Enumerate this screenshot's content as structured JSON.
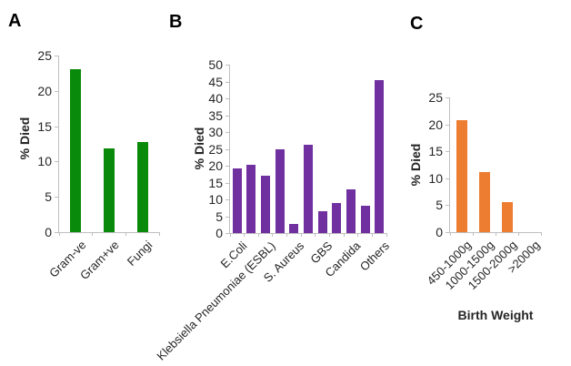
{
  "figure": {
    "background": "#ffffff",
    "axis_color": "#bfbfbf",
    "text_color": "#262626"
  },
  "chart_data": [
    {
      "type": "bar",
      "panel_label": "A",
      "title": "",
      "ylabel": "% Died",
      "xlabel": "",
      "ylim": [
        0,
        25
      ],
      "ytick_step": 5,
      "ytick_labels": [
        "0",
        "5",
        "10",
        "15",
        "20",
        "25"
      ],
      "grid": false,
      "legend": null,
      "bar_color": "#0a8a0a",
      "categories": [
        "Gram-ve",
        "Gram+ve",
        "Fungi"
      ],
      "values": [
        23.1,
        11.9,
        12.8
      ]
    },
    {
      "type": "bar",
      "panel_label": "B",
      "title": "",
      "ylabel": "% Died",
      "xlabel": "",
      "ylim": [
        0,
        50
      ],
      "ytick_step": 5,
      "ytick_labels": [
        "0",
        "5",
        "10",
        "15",
        "20",
        "25",
        "30",
        "35",
        "40",
        "45",
        "50"
      ],
      "grid": false,
      "legend": null,
      "bar_color": "#7030a0",
      "categories": [
        "E.Coli",
        "",
        "Klebsiella Pneumoniae (ESBL)",
        "",
        "S. Aureus",
        "",
        "GBS",
        "",
        "Candida",
        "",
        "Others"
      ],
      "values": [
        19.3,
        20.2,
        17,
        25,
        2.8,
        26.2,
        6.6,
        9,
        12.9,
        8,
        45.5
      ]
    },
    {
      "type": "bar",
      "panel_label": "C",
      "title": "",
      "ylabel": "% Died",
      "xlabel": "Birth Weight",
      "ylim": [
        0,
        25
      ],
      "ytick_step": 5,
      "ytick_labels": [
        "0",
        "5",
        "10",
        "15",
        "20",
        "25"
      ],
      "grid": false,
      "legend": null,
      "bar_color": "#ed7d31",
      "categories": [
        "450-1000g",
        "1000-1500g",
        "1500-2000g",
        ">2000g"
      ],
      "values": [
        20.8,
        11.2,
        5.5,
        0
      ]
    }
  ]
}
